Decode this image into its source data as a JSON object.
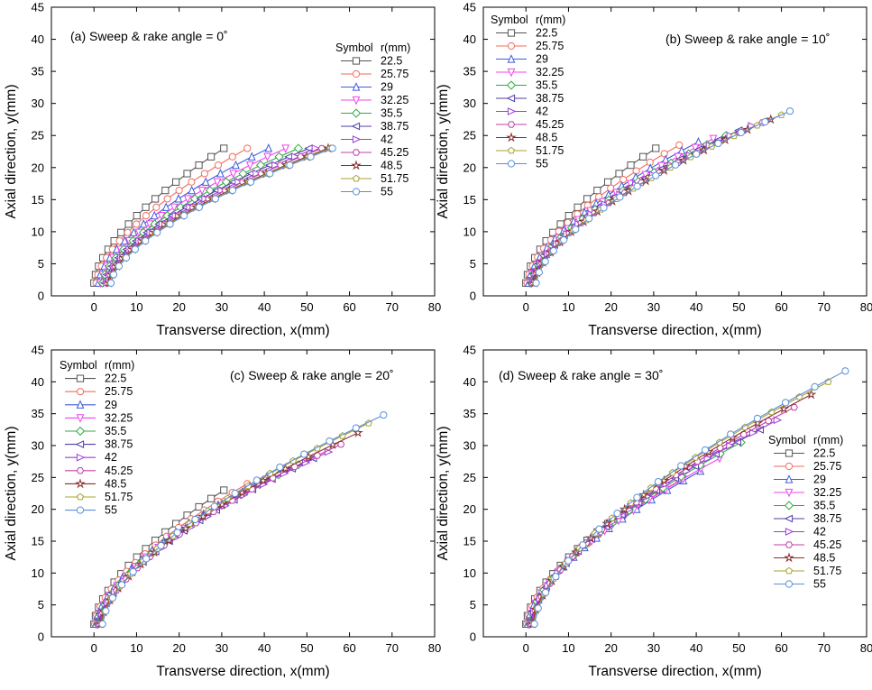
{
  "series_meta": {
    "legend_header_symbol": "Symbol",
    "legend_header_r": "r(mm)",
    "colors": [
      "#555555",
      "#f26b5b",
      "#3f5bdc",
      "#ee44ee",
      "#33aa44",
      "#4f3fa8",
      "#9b3fd8",
      "#c03fa8",
      "#8a3030",
      "#a8a030",
      "#5a8ed8"
    ],
    "markers": [
      "square",
      "circle",
      "triangle-up",
      "triangle-down",
      "diamond",
      "triangle-left",
      "triangle-right",
      "hexagon",
      "star",
      "pentagon",
      "circle"
    ]
  },
  "chart_data": [
    {
      "type": "line",
      "title": "(a) Sweep & rake angle = 0˚",
      "xlabel": "Transverse direction, x(mm)",
      "ylabel": "Axial direction, y(mm)",
      "xlim": [
        -10,
        80
      ],
      "ylim": [
        0,
        45
      ],
      "xticks": [
        "0",
        "10",
        "20",
        "30",
        "40",
        "50",
        "60",
        "70",
        "80"
      ],
      "yticks": [
        "0",
        "5",
        "10",
        "15",
        "20",
        "25",
        "30",
        "35",
        "40",
        "45"
      ],
      "legend_position": "right-middle",
      "series": [
        {
          "name": "22.5",
          "tip_x": 30.5,
          "tip_y": 23.0,
          "root_x": 0.0
        },
        {
          "name": "25.75",
          "tip_x": 36.0,
          "tip_y": 23.0,
          "root_x": 0.5
        },
        {
          "name": "29",
          "tip_x": 41.0,
          "tip_y": 23.0,
          "root_x": 1.0
        },
        {
          "name": "32.25",
          "tip_x": 45.0,
          "tip_y": 23.0,
          "root_x": 1.5
        },
        {
          "name": "35.5",
          "tip_x": 48.0,
          "tip_y": 23.0,
          "root_x": 2.0
        },
        {
          "name": "38.75",
          "tip_x": 50.5,
          "tip_y": 23.0,
          "root_x": 2.5
        },
        {
          "name": "42",
          "tip_x": 52.0,
          "tip_y": 23.0,
          "root_x": 3.0
        },
        {
          "name": "45.25",
          "tip_x": 53.5,
          "tip_y": 23.0,
          "root_x": 3.2
        },
        {
          "name": "48.5",
          "tip_x": 55.0,
          "tip_y": 23.0,
          "root_x": 3.5
        },
        {
          "name": "51.75",
          "tip_x": 55.5,
          "tip_y": 23.0,
          "root_x": 3.8
        },
        {
          "name": "55",
          "tip_x": 56.0,
          "tip_y": 23.0,
          "root_x": 4.0
        }
      ]
    },
    {
      "type": "line",
      "title": "(b) Sweep & rake angle = 10˚",
      "xlabel": "Transverse direction, x(mm)",
      "ylabel": "Axial direction, y(mm)",
      "xlim": [
        -10,
        80
      ],
      "ylim": [
        0,
        45
      ],
      "xticks": [
        "0",
        "10",
        "20",
        "30",
        "40",
        "50",
        "60",
        "70",
        "80"
      ],
      "yticks": [
        "0",
        "5",
        "10",
        "15",
        "20",
        "25",
        "30",
        "35",
        "40",
        "45"
      ],
      "legend_position": "top-left",
      "series": [
        {
          "name": "22.5",
          "tip_x": 30.5,
          "tip_y": 23.0,
          "root_x": 0.0
        },
        {
          "name": "25.75",
          "tip_x": 36.0,
          "tip_y": 23.5,
          "root_x": 0.3
        },
        {
          "name": "29",
          "tip_x": 40.5,
          "tip_y": 24.0,
          "root_x": 0.6
        },
        {
          "name": "32.25",
          "tip_x": 44.0,
          "tip_y": 24.5,
          "root_x": 0.9
        },
        {
          "name": "35.5",
          "tip_x": 47.0,
          "tip_y": 25.0,
          "root_x": 1.2
        },
        {
          "name": "38.75",
          "tip_x": 50.0,
          "tip_y": 25.8,
          "root_x": 1.4
        },
        {
          "name": "42",
          "tip_x": 53.0,
          "tip_y": 26.5,
          "root_x": 1.6
        },
        {
          "name": "45.25",
          "tip_x": 55.5,
          "tip_y": 27.0,
          "root_x": 1.8
        },
        {
          "name": "48.5",
          "tip_x": 57.5,
          "tip_y": 27.5,
          "root_x": 2.0
        },
        {
          "name": "51.75",
          "tip_x": 60.0,
          "tip_y": 28.2,
          "root_x": 2.2
        },
        {
          "name": "55",
          "tip_x": 62.0,
          "tip_y": 28.8,
          "root_x": 2.4
        }
      ]
    },
    {
      "type": "line",
      "title": "(c) Sweep & rake angle = 20˚",
      "xlabel": "Transverse direction, x(mm)",
      "ylabel": "Axial direction, y(mm)",
      "xlim": [
        -10,
        80
      ],
      "ylim": [
        0,
        45
      ],
      "xticks": [
        "0",
        "10",
        "20",
        "30",
        "40",
        "50",
        "60",
        "70",
        "80"
      ],
      "yticks": [
        "0",
        "5",
        "10",
        "15",
        "20",
        "25",
        "30",
        "35",
        "40",
        "45"
      ],
      "legend_position": "top-left",
      "series": [
        {
          "name": "22.5",
          "tip_x": 30.5,
          "tip_y": 23.0,
          "root_x": 0.0
        },
        {
          "name": "25.75",
          "tip_x": 36.0,
          "tip_y": 24.0,
          "root_x": 0.2
        },
        {
          "name": "29",
          "tip_x": 40.5,
          "tip_y": 25.0,
          "root_x": 0.4
        },
        {
          "name": "32.25",
          "tip_x": 44.5,
          "tip_y": 26.0,
          "root_x": 0.6
        },
        {
          "name": "35.5",
          "tip_x": 48.0,
          "tip_y": 27.0,
          "root_x": 0.8
        },
        {
          "name": "38.75",
          "tip_x": 51.5,
          "tip_y": 28.0,
          "root_x": 1.0
        },
        {
          "name": "42",
          "tip_x": 55.0,
          "tip_y": 29.0,
          "root_x": 1.2
        },
        {
          "name": "45.25",
          "tip_x": 58.0,
          "tip_y": 30.2,
          "root_x": 1.4
        },
        {
          "name": "48.5",
          "tip_x": 62.0,
          "tip_y": 32.0,
          "root_x": 1.6
        },
        {
          "name": "51.75",
          "tip_x": 64.5,
          "tip_y": 33.5,
          "root_x": 1.8
        },
        {
          "name": "55",
          "tip_x": 68.0,
          "tip_y": 34.8,
          "root_x": 2.0
        }
      ]
    },
    {
      "type": "line",
      "title": "(d) Sweep & rake angle = 30˚",
      "xlabel": "Transverse direction, x(mm)",
      "ylabel": "Axial direction, y(mm)",
      "xlim": [
        -10,
        80
      ],
      "ylim": [
        0,
        45
      ],
      "xticks": [
        "0",
        "10",
        "20",
        "30",
        "40",
        "50",
        "60",
        "70",
        "80"
      ],
      "yticks": [
        "0",
        "5",
        "10",
        "15",
        "20",
        "25",
        "30",
        "35",
        "40",
        "45"
      ],
      "legend_position": "right-lower",
      "series": [
        {
          "name": "22.5",
          "tip_x": 30.5,
          "tip_y": 23.0,
          "root_x": 0.0
        },
        {
          "name": "25.75",
          "tip_x": 36.0,
          "tip_y": 24.5,
          "root_x": 0.2
        },
        {
          "name": "29",
          "tip_x": 41.0,
          "tip_y": 26.0,
          "root_x": 0.4
        },
        {
          "name": "32.25",
          "tip_x": 45.5,
          "tip_y": 28.0,
          "root_x": 0.6
        },
        {
          "name": "35.5",
          "tip_x": 50.5,
          "tip_y": 30.5,
          "root_x": 0.8
        },
        {
          "name": "38.75",
          "tip_x": 55.0,
          "tip_y": 32.5,
          "root_x": 1.0
        },
        {
          "name": "42",
          "tip_x": 59.0,
          "tip_y": 34.0,
          "root_x": 1.2
        },
        {
          "name": "45.25",
          "tip_x": 63.0,
          "tip_y": 36.0,
          "root_x": 1.4
        },
        {
          "name": "48.5",
          "tip_x": 67.0,
          "tip_y": 38.0,
          "root_x": 1.6
        },
        {
          "name": "51.75",
          "tip_x": 71.0,
          "tip_y": 40.0,
          "root_x": 1.8
        },
        {
          "name": "55",
          "tip_x": 75.0,
          "tip_y": 41.7,
          "root_x": 2.0
        }
      ]
    }
  ]
}
